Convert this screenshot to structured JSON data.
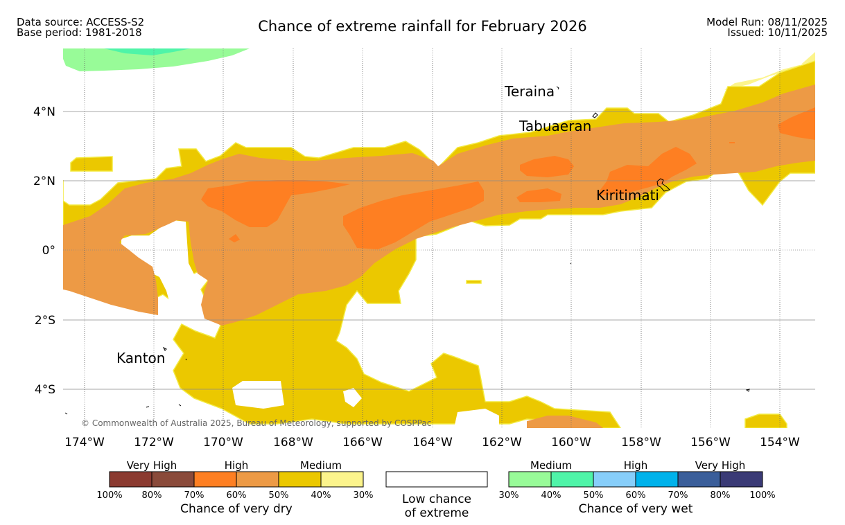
{
  "header": {
    "title": "Chance of extreme rainfall for February 2026",
    "data_source": "Data source: ACCESS-S2",
    "base_period": "Base period: 1981-2018",
    "model_run": "Model Run: 08/11/2025",
    "issued": "Issued: 10/11/2025"
  },
  "map": {
    "lat_labels": [
      "4°N",
      "2°N",
      "0°",
      "2°S",
      "4°S"
    ],
    "lon_labels": [
      "174°W",
      "172°W",
      "170°W",
      "168°W",
      "166°W",
      "164°W",
      "162°W",
      "160°W",
      "158°W",
      "156°W",
      "154°W"
    ],
    "places": [
      "Teraina",
      "Tabuaeran",
      "Kiritimati",
      "Kanton"
    ],
    "copyright": "© Commonwealth of Australia 2025, Bureau of Meteorology, supported by COSPPac",
    "colors": {
      "very_high_dry": "#ed9a45",
      "high_dry": "#fe7f22",
      "medium_dry": "#ebc800",
      "low_dry": "#fcf48c",
      "medium_wet": "#98fb98",
      "high_wet": "#4ff4a8"
    }
  },
  "legend": {
    "dry": {
      "group_labels": [
        "Very High",
        "High",
        "Medium"
      ],
      "colors": [
        "#8b3a30",
        "#8a4a3a",
        "#fe7f22",
        "#ed9a45",
        "#ebc800",
        "#fcf48c"
      ],
      "ticks": [
        "100%",
        "80%",
        "70%",
        "60%",
        "50%",
        "40%",
        "30%"
      ],
      "title": "Chance of very dry"
    },
    "low": {
      "line1": "Low chance",
      "line2": "of extreme"
    },
    "wet": {
      "group_labels": [
        "Medium",
        "High",
        "Very High"
      ],
      "colors": [
        "#98fb98",
        "#4ff4a8",
        "#87cefa",
        "#00b2eb",
        "#3a5e9a",
        "#3a3a76"
      ],
      "ticks": [
        "30%",
        "40%",
        "50%",
        "60%",
        "70%",
        "80%",
        "100%"
      ],
      "title": "Chance of very wet"
    }
  }
}
